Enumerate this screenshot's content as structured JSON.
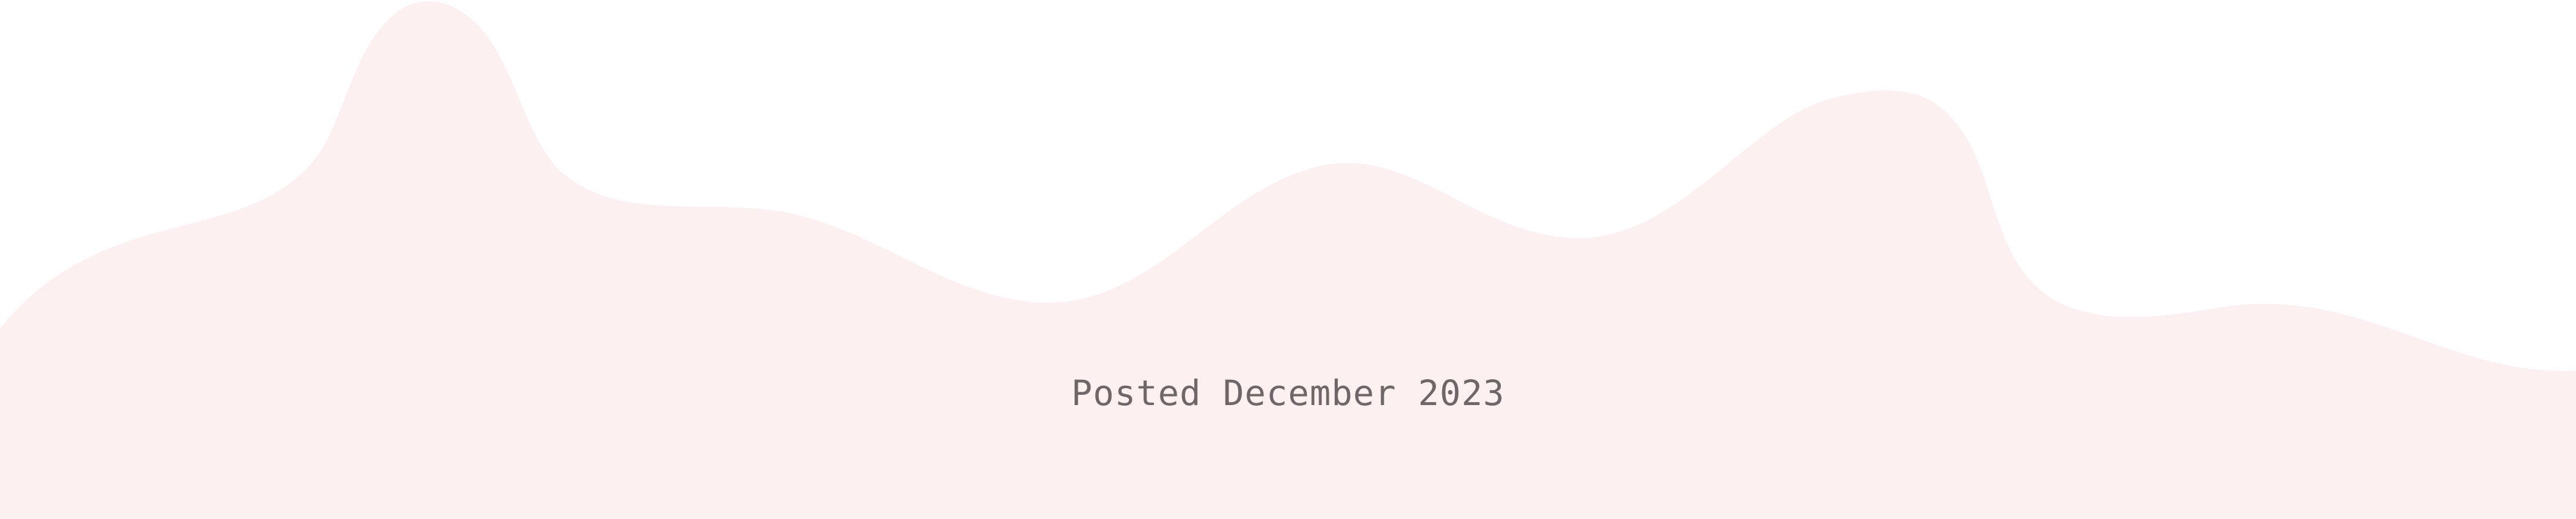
{
  "footer": {
    "posted_text": "Posted December 2023"
  },
  "colors": {
    "background": "#ffffff",
    "wave_fill": "#fdf0f0",
    "text": "#6f6767"
  }
}
